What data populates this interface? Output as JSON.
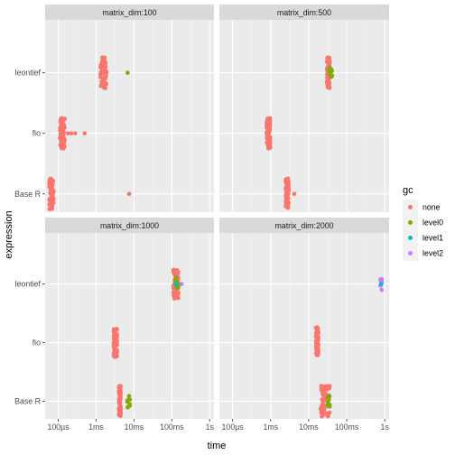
{
  "chart_data": {
    "type": "scatter",
    "x_axis": {
      "label": "time",
      "scale": "log10",
      "range_seconds": [
        4.5e-05,
        1.3
      ],
      "tick_values_seconds": [
        0.0001,
        0.001,
        0.01,
        0.1,
        1
      ],
      "tick_labels": [
        "100µs",
        "1ms",
        "10ms",
        "100ms",
        "1s"
      ]
    },
    "y_axis": {
      "label": "expression",
      "categories": [
        "leontief",
        "fio",
        "Base R"
      ]
    },
    "legend": {
      "title": "gc",
      "placement": "right",
      "entries": [
        {
          "label": "none",
          "color": "#F8766D"
        },
        {
          "label": "level0",
          "color": "#7CAE00"
        },
        {
          "label": "level1",
          "color": "#00BFC4"
        },
        {
          "label": "level2",
          "color": "#C77CFF"
        }
      ]
    },
    "panels": [
      {
        "strip": "matrix_dim:100",
        "series": [
          {
            "expression": "leontief",
            "gc": "none",
            "times_seconds_range": [
              0.0013,
              0.0019
            ],
            "outliers_seconds": []
          },
          {
            "expression": "leontief",
            "gc": "level0",
            "times_seconds_range": [
              0.0068,
              0.0068
            ],
            "outliers_seconds": []
          },
          {
            "expression": "fio",
            "gc": "none",
            "times_seconds_range": [
              0.00011,
              0.00015
            ],
            "outliers_seconds": [
              0.00018,
              0.00022,
              0.00028,
              0.0005
            ]
          },
          {
            "expression": "Base R",
            "gc": "none",
            "times_seconds_range": [
              5.8e-05,
              7.5e-05
            ],
            "outliers_seconds": [
              0.0075
            ]
          }
        ]
      },
      {
        "strip": "matrix_dim:500",
        "series": [
          {
            "expression": "leontief",
            "gc": "none",
            "times_seconds_range": [
              0.03,
              0.036
            ],
            "outliers_seconds": []
          },
          {
            "expression": "leontief",
            "gc": "level0",
            "times_seconds_range": [
              0.034,
              0.042
            ],
            "outliers_seconds": []
          },
          {
            "expression": "fio",
            "gc": "none",
            "times_seconds_range": [
              0.00078,
              0.00098
            ],
            "outliers_seconds": []
          },
          {
            "expression": "Base R",
            "gc": "none",
            "times_seconds_range": [
              0.0025,
              0.003
            ],
            "outliers_seconds": [
              0.0042
            ]
          }
        ]
      },
      {
        "strip": "matrix_dim:1000",
        "series": [
          {
            "expression": "leontief",
            "gc": "none",
            "times_seconds_range": [
              0.11,
              0.15
            ],
            "outliers_seconds": []
          },
          {
            "expression": "leontief",
            "gc": "level0",
            "times_seconds_range": [
              0.12,
              0.16
            ],
            "outliers_seconds": []
          },
          {
            "expression": "leontief",
            "gc": "level1",
            "times_seconds_range": [
              0.13,
              0.13
            ],
            "outliers_seconds": []
          },
          {
            "expression": "leontief",
            "gc": "level2",
            "times_seconds_range": [
              0.18,
              0.18
            ],
            "outliers_seconds": []
          },
          {
            "expression": "fio",
            "gc": "none",
            "times_seconds_range": [
              0.0029,
              0.0036
            ],
            "outliers_seconds": []
          },
          {
            "expression": "Base R",
            "gc": "none",
            "times_seconds_range": [
              0.004,
              0.0045
            ],
            "outliers_seconds": []
          },
          {
            "expression": "Base R",
            "gc": "level0",
            "times_seconds_range": [
              0.0065,
              0.0078
            ],
            "outliers_seconds": []
          }
        ]
      },
      {
        "strip": "matrix_dim:2000",
        "series": [
          {
            "expression": "leontief",
            "gc": "level2",
            "times_seconds_range": [
              0.75,
              0.88
            ],
            "outliers_seconds": []
          },
          {
            "expression": "leontief",
            "gc": "level1",
            "times_seconds_range": [
              0.8,
              0.8
            ],
            "outliers_seconds": []
          },
          {
            "expression": "fio",
            "gc": "none",
            "times_seconds_range": [
              0.0155,
              0.018
            ],
            "outliers_seconds": []
          },
          {
            "expression": "Base R",
            "gc": "none",
            "times_seconds_range": [
              0.02,
              0.036
            ],
            "outliers_seconds": []
          },
          {
            "expression": "Base R",
            "gc": "level0",
            "times_seconds_range": [
              0.031,
              0.036
            ],
            "outliers_seconds": []
          }
        ]
      }
    ]
  }
}
